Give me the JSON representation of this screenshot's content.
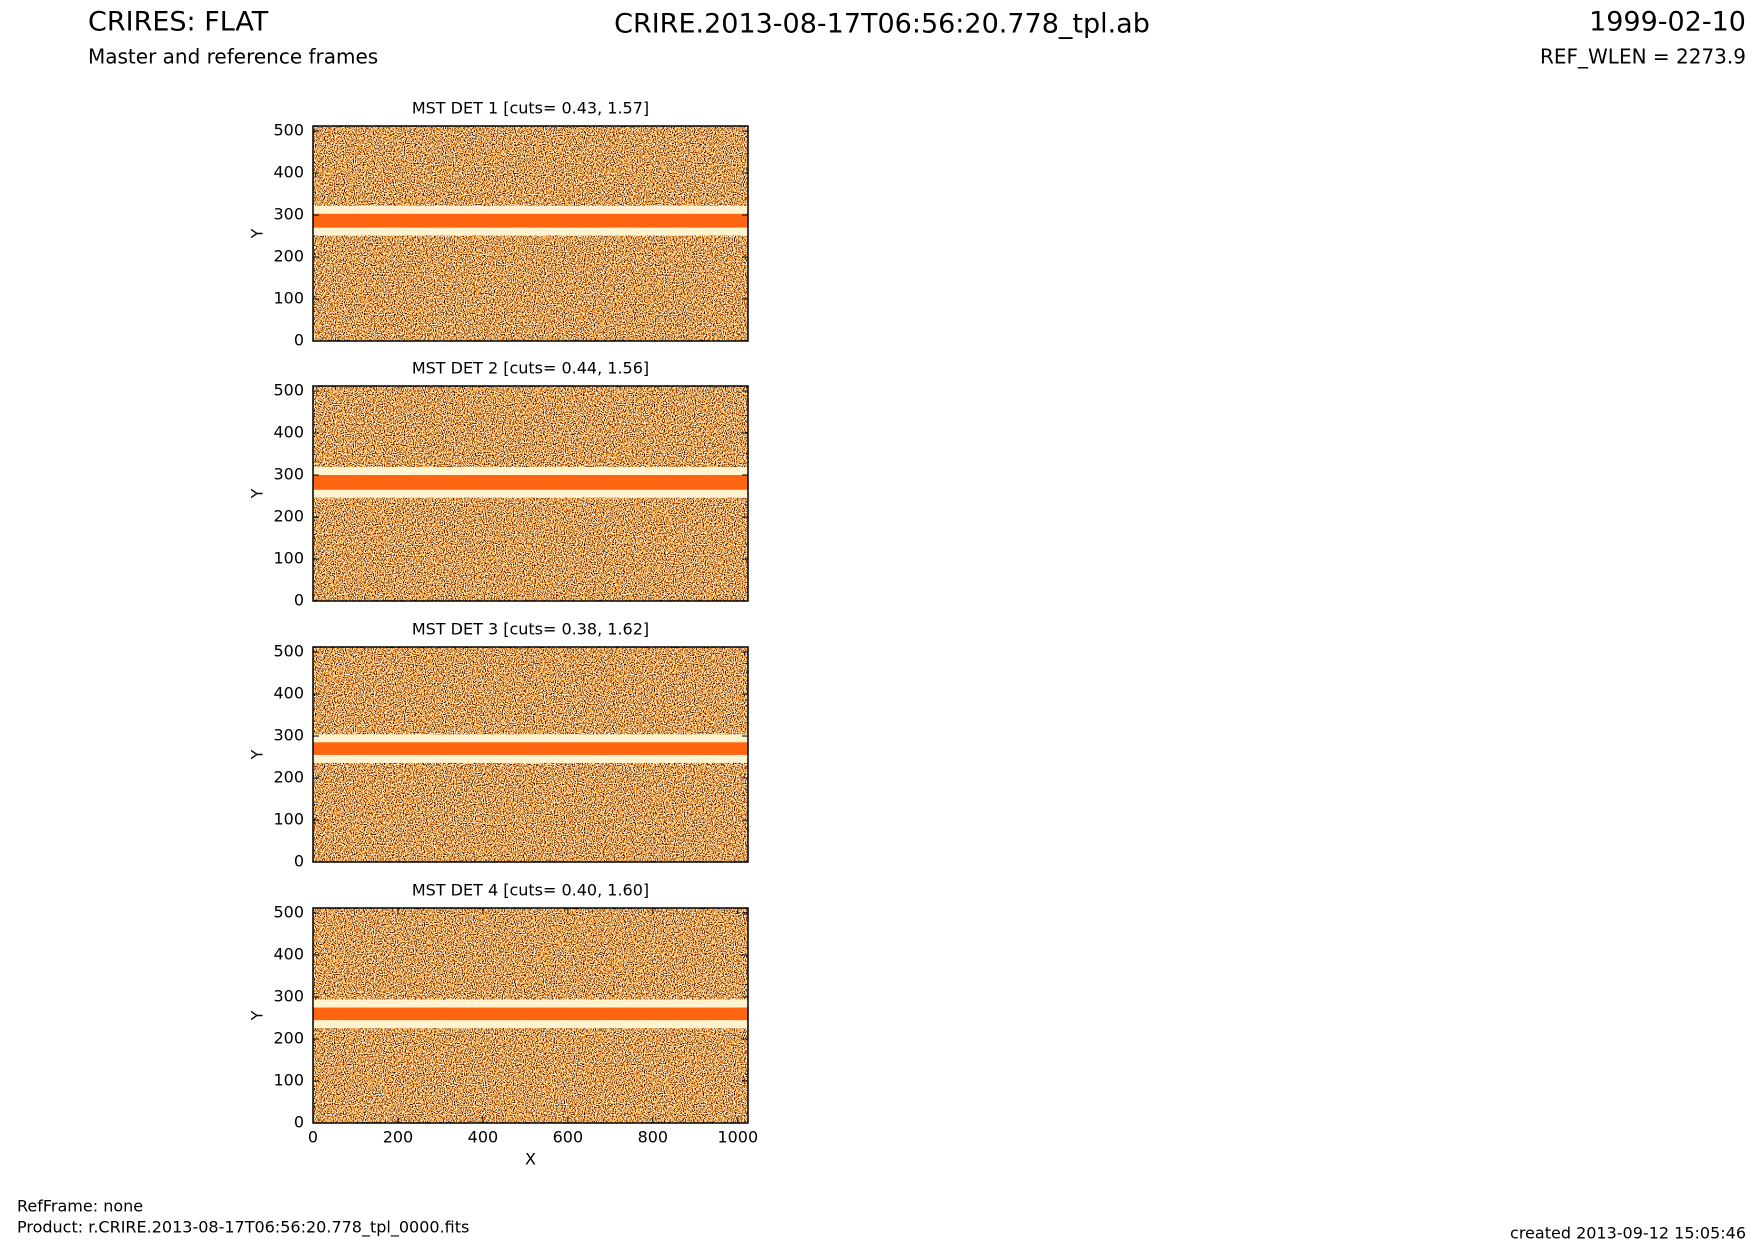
{
  "header": {
    "title": "CRIRES: FLAT",
    "subtitle": "Master and reference frames",
    "file": "CRIRE.2013-08-17T06:56:20.778_tpl.ab",
    "date": "1999-02-10",
    "ref_wlen": "REF_WLEN = 2273.9"
  },
  "footer": {
    "ref_frame": "RefFrame: none",
    "product": "Product: r.CRIRE.2013-08-17T06:56:20.778_tpl_0000.fits",
    "created": "created 2013-09-12 15:05:46"
  },
  "chart_data": [
    {
      "type": "image",
      "title": "MST DET 1 [cuts= 0.43, 1.57]",
      "y_label": "Y",
      "xlim": [
        0,
        1024
      ],
      "ylim": [
        0,
        512
      ],
      "yticks": [
        0,
        100,
        200,
        300,
        400,
        500
      ],
      "stripe": [
        270,
        303
      ]
    },
    {
      "type": "image",
      "title": "MST DET 2 [cuts= 0.44, 1.56]",
      "y_label": "Y",
      "xlim": [
        0,
        1024
      ],
      "ylim": [
        0,
        512
      ],
      "yticks": [
        0,
        100,
        200,
        300,
        400,
        500
      ],
      "stripe": [
        265,
        300
      ]
    },
    {
      "type": "image",
      "title": "MST DET 3 [cuts= 0.38, 1.62]",
      "y_label": "Y",
      "xlim": [
        0,
        1024
      ],
      "ylim": [
        0,
        512
      ],
      "yticks": [
        0,
        100,
        200,
        300,
        400,
        500
      ],
      "stripe": [
        255,
        285
      ]
    },
    {
      "type": "image",
      "title": "MST DET 4 [cuts= 0.40, 1.60]",
      "y_label": "Y",
      "x_label": "X",
      "xlim": [
        0,
        1024
      ],
      "ylim": [
        0,
        512
      ],
      "yticks": [
        0,
        100,
        200,
        300,
        400,
        500
      ],
      "xticks": [
        0,
        200,
        400,
        600,
        800,
        1000
      ],
      "stripe": [
        245,
        275
      ]
    }
  ]
}
